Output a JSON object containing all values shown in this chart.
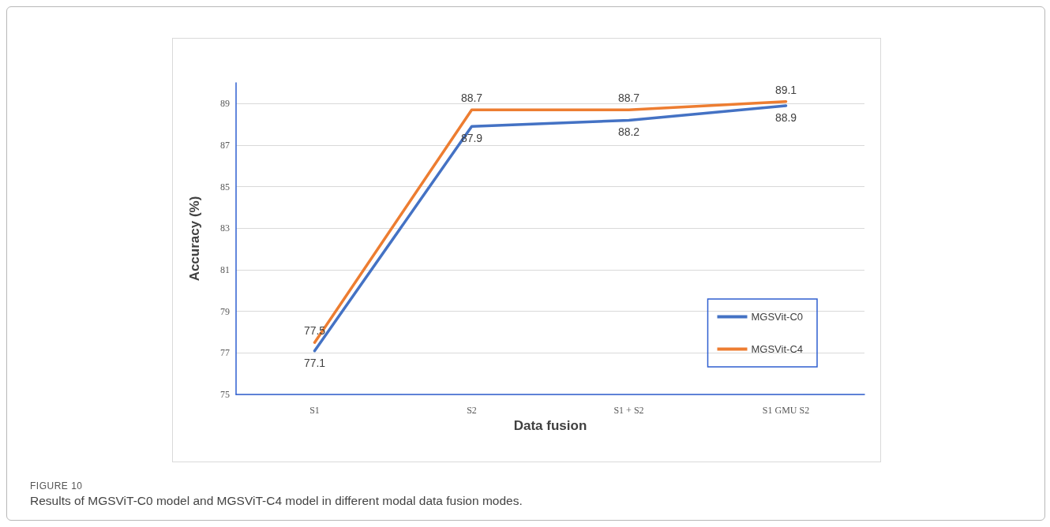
{
  "chart_data": {
    "type": "line",
    "xlabel": "Data fusion",
    "ylabel": "Accuracy (%)",
    "categories": [
      "S1",
      "S2",
      "S1 + S2",
      "S1 GMU S2"
    ],
    "series": [
      {
        "name": "MGSVit-C0",
        "color": "#4472c4",
        "values": [
          77.1,
          87.9,
          88.2,
          88.9
        ]
      },
      {
        "name": "MGSVit-C4",
        "color": "#ed7d31",
        "values": [
          77.5,
          88.7,
          88.7,
          89.1
        ]
      }
    ],
    "ylim": [
      75,
      90
    ],
    "yticks": [
      75,
      77,
      79,
      81,
      83,
      85,
      87,
      89
    ],
    "grid": "y",
    "legend": "bottom right",
    "marker": "none",
    "line_style": "solid",
    "data_labels": true,
    "annotations": [
      "FIGURE 10",
      "Results of MGSViT-C0 model and MGSViT-C4 model in different modal data fusion modes."
    ]
  }
}
